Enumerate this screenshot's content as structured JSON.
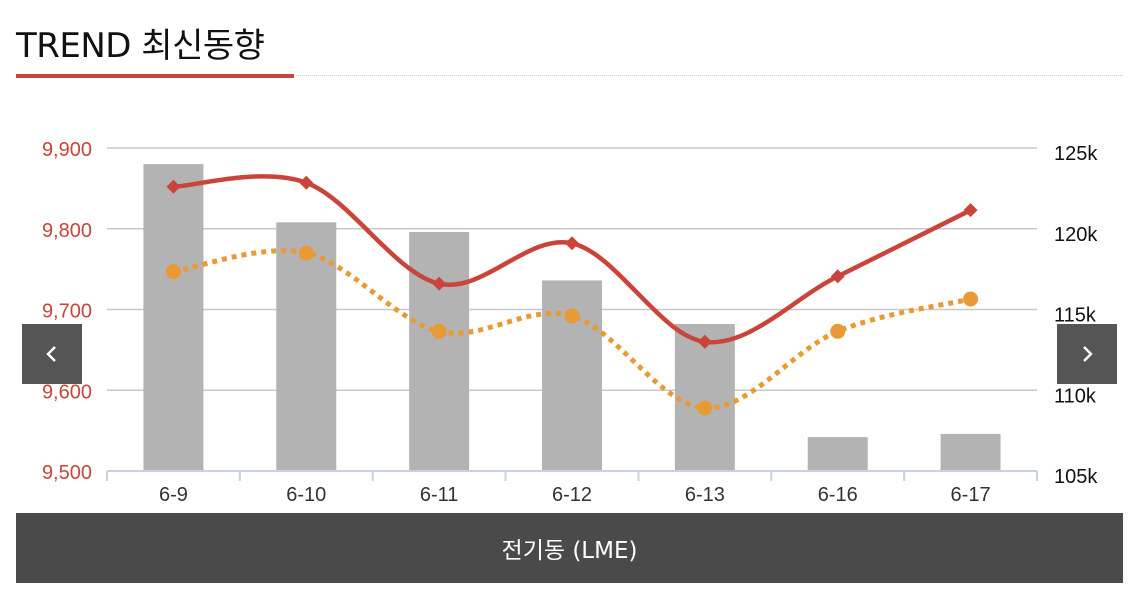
{
  "header": {
    "title": "TREND 최신동향"
  },
  "nav": {
    "prev_icon": "chevron-left-icon",
    "next_icon": "chevron-right-icon"
  },
  "footer": {
    "label": "전기동 (LME)"
  },
  "colors": {
    "accent": "#c9443b",
    "series_line": "#c9443b",
    "series_dotted": "#e89a35",
    "bars": "#b3b3b3",
    "nav_bg": "#555555",
    "footer_bg": "#4a4a4a"
  },
  "chart_data": {
    "type": "bar",
    "title": "",
    "categories": [
      "6-9",
      "6-10",
      "6-11",
      "6-12",
      "6-13",
      "6-16",
      "6-17"
    ],
    "left_axis": {
      "ylim": [
        9500,
        9900
      ],
      "ticks": [
        "9,500",
        "9,600",
        "9,700",
        "9,800",
        "9,900"
      ]
    },
    "right_axis": {
      "ylim": [
        105000,
        125000
      ],
      "ticks": [
        "105k",
        "110k",
        "115k",
        "120k",
        "125k"
      ]
    },
    "grid": true,
    "series": [
      {
        "kind": "bar",
        "axis": "right",
        "values": [
          124000,
          120400,
          119800,
          116800,
          114100,
          107100,
          107300
        ]
      },
      {
        "kind": "line",
        "axis": "left",
        "marker": "diamond",
        "values": [
          9852,
          9857,
          9732,
          9782,
          9660,
          9741,
          9823
        ]
      },
      {
        "kind": "line",
        "axis": "left",
        "marker": "circle",
        "style": "dotted",
        "values": [
          9747,
          9770,
          9673,
          9692,
          9578,
          9673,
          9713
        ]
      }
    ]
  }
}
